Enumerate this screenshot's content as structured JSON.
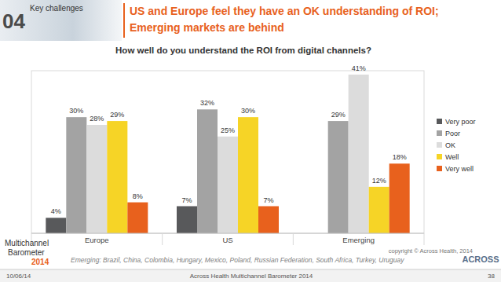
{
  "slide": {
    "section_number": "04",
    "section_label": "Key challenges",
    "headline": [
      "US and Europe feel they have an OK understanding of ROI;",
      "Emerging markets are behind"
    ],
    "footnote": "Emerging: Brazil, China, Colombia, Hungary, Mexico, Poland, Russian Federation, South Africa, Turkey, Uruguay",
    "footer": {
      "date": "10/06/14",
      "title": "Across Health Multichannel Barometer 2014",
      "page": "38"
    },
    "logo": [
      "Multichannel",
      "Barometer",
      "2014"
    ],
    "brand": "ACROSS"
  },
  "chart_data": {
    "type": "bar",
    "title": "How well do you understand the ROI from digital channels?",
    "categories": [
      "Europe",
      "US",
      "Emerging"
    ],
    "series": [
      {
        "name": "Very poor",
        "color": "#58595b",
        "values": [
          4,
          7,
          null
        ],
        "value_labels": [
          "4%",
          "7%",
          null
        ]
      },
      {
        "name": "Poor",
        "color": "#a3a3a3",
        "values": [
          30,
          32,
          29
        ],
        "value_labels": [
          "30%",
          "32%",
          "29%"
        ]
      },
      {
        "name": "OK",
        "color": "#dcdcdc",
        "values": [
          28,
          25,
          41
        ],
        "value_labels": [
          "28%",
          "25%",
          "41%"
        ]
      },
      {
        "name": "Well",
        "color": "#f6d426",
        "values": [
          29,
          30,
          12
        ],
        "value_labels": [
          "29%",
          "30%",
          "12%"
        ]
      },
      {
        "name": "Very well",
        "color": "#e8611d",
        "values": [
          8,
          7,
          18
        ],
        "value_labels": [
          "8%",
          "7%",
          "18%"
        ]
      }
    ],
    "ylim": [
      0,
      42
    ],
    "yticks": [],
    "tick_labels": "x",
    "data_labels": true,
    "legend": "right",
    "annotations": [
      "copyright © Across Health, 2014"
    ]
  }
}
